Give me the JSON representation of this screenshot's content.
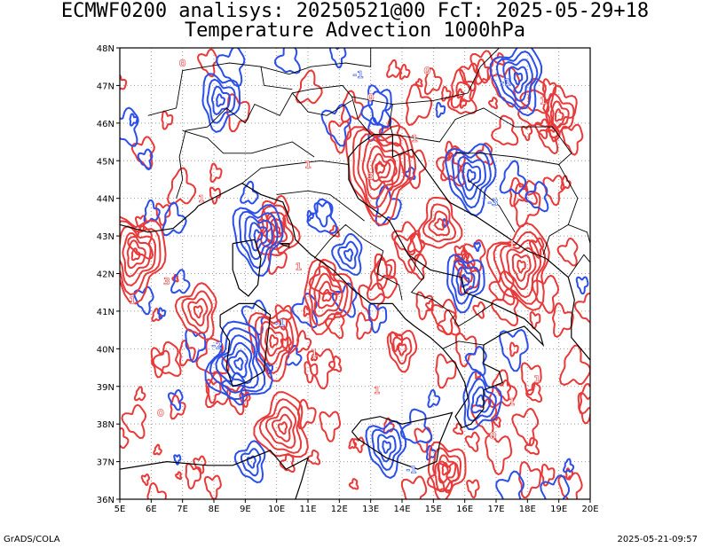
{
  "title": {
    "line1": "ECMWF0200 analisys: 20250521@00 FcT: 2025-05-29+18",
    "line2": "Temperature Advection 1000hPa"
  },
  "map": {
    "projection": "lat-lon",
    "lon_range": [
      5,
      20
    ],
    "lat_range": [
      36,
      48
    ],
    "lon_ticks": [
      "5E",
      "6E",
      "7E",
      "8E",
      "9E",
      "10E",
      "11E",
      "12E",
      "13E",
      "14E",
      "15E",
      "16E",
      "17E",
      "18E",
      "19E",
      "20E"
    ],
    "lat_ticks": [
      "36N",
      "37N",
      "38N",
      "39N",
      "40N",
      "41N",
      "42N",
      "43N",
      "44N",
      "45N",
      "46N",
      "47N",
      "48N"
    ],
    "grid": "dotted",
    "colors": {
      "positive": "#e83a3a",
      "negative": "#2b4fe8",
      "coast": "#000000",
      "grid": "#9a9a9a"
    },
    "positive_centers": [
      {
        "lon": 5.5,
        "lat": 42.5,
        "strength": 6
      },
      {
        "lon": 13.3,
        "lat": 44.8,
        "strength": 7
      },
      {
        "lon": 17.8,
        "lat": 42.2,
        "strength": 6
      },
      {
        "lon": 11.6,
        "lat": 41.4,
        "strength": 5
      },
      {
        "lon": 9.9,
        "lat": 40.2,
        "strength": 5
      },
      {
        "lon": 10.2,
        "lat": 37.9,
        "strength": 5
      },
      {
        "lon": 15.4,
        "lat": 36.8,
        "strength": 4
      },
      {
        "lon": 10.0,
        "lat": 43.1,
        "strength": 4
      },
      {
        "lon": 15.2,
        "lat": 43.3,
        "strength": 4
      },
      {
        "lon": 7.5,
        "lat": 41.0,
        "strength": 4
      },
      {
        "lon": 19.0,
        "lat": 46.2,
        "strength": 3
      },
      {
        "lon": 14.0,
        "lat": 40.0,
        "strength": 3
      }
    ],
    "negative_centers": [
      {
        "lon": 8.8,
        "lat": 39.6,
        "strength": 6
      },
      {
        "lon": 9.4,
        "lat": 43.0,
        "strength": 5
      },
      {
        "lon": 17.7,
        "lat": 47.2,
        "strength": 5
      },
      {
        "lon": 16.2,
        "lat": 44.6,
        "strength": 5
      },
      {
        "lon": 13.5,
        "lat": 37.4,
        "strength": 4
      },
      {
        "lon": 8.2,
        "lat": 46.6,
        "strength": 4
      },
      {
        "lon": 16.5,
        "lat": 38.6,
        "strength": 4
      },
      {
        "lon": 16.0,
        "lat": 41.8,
        "strength": 4
      },
      {
        "lon": 9.2,
        "lat": 37.0,
        "strength": 3
      },
      {
        "lon": 12.3,
        "lat": 42.5,
        "strength": 3
      }
    ],
    "contour_labels": [
      {
        "lon": 7.0,
        "lat": 47.5,
        "text": "0"
      },
      {
        "lon": 13.0,
        "lat": 46.6,
        "text": "0"
      },
      {
        "lon": 14.4,
        "lat": 45.5,
        "text": "1"
      },
      {
        "lon": 17.3,
        "lat": 47.0,
        "text": "-1"
      },
      {
        "lon": 18.5,
        "lat": 46.5,
        "text": "1"
      },
      {
        "lon": 16.9,
        "lat": 43.8,
        "text": "-3"
      },
      {
        "lon": 17.5,
        "lat": 42.7,
        "text": "1"
      },
      {
        "lon": 13.0,
        "lat": 44.5,
        "text": "3"
      },
      {
        "lon": 11.0,
        "lat": 44.8,
        "text": "1"
      },
      {
        "lon": 7.6,
        "lat": 43.9,
        "text": "1"
      },
      {
        "lon": 6.5,
        "lat": 41.7,
        "text": "3"
      },
      {
        "lon": 5.4,
        "lat": 41.2,
        "text": "1"
      },
      {
        "lon": 10.1,
        "lat": 40.6,
        "text": "-1"
      },
      {
        "lon": 11.2,
        "lat": 39.8,
        "text": "1"
      },
      {
        "lon": 8.1,
        "lat": 40.0,
        "text": "-2"
      },
      {
        "lon": 13.2,
        "lat": 38.8,
        "text": "1"
      },
      {
        "lon": 17.5,
        "lat": 38.5,
        "text": "1"
      },
      {
        "lon": 16.9,
        "lat": 37.6,
        "text": "0"
      },
      {
        "lon": 14.3,
        "lat": 36.7,
        "text": "-1"
      },
      {
        "lon": 18.3,
        "lat": 39.1,
        "text": "1"
      },
      {
        "lon": 6.3,
        "lat": 38.2,
        "text": "0"
      },
      {
        "lon": 12.6,
        "lat": 47.2,
        "text": "-1"
      },
      {
        "lon": 14.8,
        "lat": 47.3,
        "text": "0"
      },
      {
        "lon": 10.7,
        "lat": 42.1,
        "text": "1"
      }
    ]
  },
  "footer": {
    "left": "GrADS/COLA",
    "right": "2025-05-21-09:57"
  }
}
